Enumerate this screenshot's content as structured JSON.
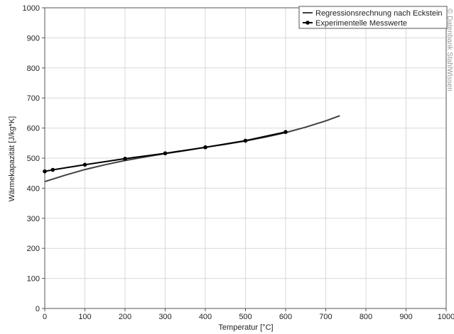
{
  "chart_data": {
    "type": "line",
    "title": "",
    "xlabel": "Temperatur [°C]",
    "ylabel": "Wärmekapazität [J/kg*K]",
    "xlim": [
      0,
      1000
    ],
    "ylim": [
      0,
      1000
    ],
    "xticks": [
      0,
      100,
      200,
      300,
      400,
      500,
      600,
      700,
      800,
      900,
      1000
    ],
    "yticks": [
      0,
      100,
      200,
      300,
      400,
      500,
      600,
      700,
      800,
      900,
      1000
    ],
    "grid": true,
    "legend_position": "top-right",
    "watermark": "© Datenbank StahlWissen",
    "series": [
      {
        "name": "Regressionsrechnung nach Eckstein",
        "color": "#404040",
        "markers": false,
        "x": [
          0,
          50,
          100,
          150,
          200,
          250,
          300,
          350,
          400,
          450,
          500,
          550,
          600,
          650,
          700,
          735
        ],
        "y": [
          422,
          443,
          462,
          478,
          492,
          504,
          515,
          525,
          536,
          546,
          557,
          570,
          585,
          603,
          624,
          641
        ]
      },
      {
        "name": "Experimentelle Messwerte",
        "color": "#000000",
        "markers": true,
        "x": [
          0,
          20,
          100,
          200,
          300,
          400,
          500,
          600
        ],
        "y": [
          456,
          461,
          478,
          498,
          516,
          536,
          558,
          587
        ]
      }
    ]
  }
}
